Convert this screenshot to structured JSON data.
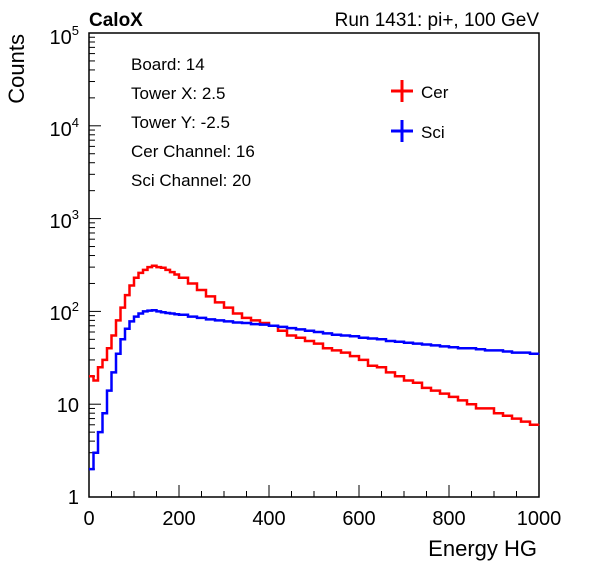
{
  "chart_data": {
    "type": "line",
    "title_left": "CaloX",
    "title_right": "Run 1431: pi+, 100 GeV",
    "xlabel": "Energy HG",
    "ylabel": "Counts",
    "xlim": [
      0,
      1000
    ],
    "ylim": [
      1,
      100000
    ],
    "yscale": "log",
    "grid": false,
    "x_ticks": [
      "0",
      "200",
      "400",
      "600",
      "800",
      "1000"
    ],
    "y_ticks": [
      {
        "base": "1",
        "exp": ""
      },
      {
        "base": "10",
        "exp": ""
      },
      {
        "base": "10",
        "exp": "2"
      },
      {
        "base": "10",
        "exp": "3"
      },
      {
        "base": "10",
        "exp": "4"
      },
      {
        "base": "10",
        "exp": "5"
      }
    ],
    "info_box": [
      "Board: 14",
      "Tower X: 2.5",
      "Tower Y: -2.5",
      "Cer Channel: 16",
      "Sci Channel: 20"
    ],
    "legend_position": "top-right",
    "series": [
      {
        "name": "Cer",
        "color": "#ff0000",
        "x": [
          0,
          10,
          20,
          30,
          40,
          50,
          60,
          70,
          80,
          90,
          100,
          110,
          120,
          130,
          140,
          150,
          160,
          170,
          180,
          190,
          200,
          220,
          240,
          260,
          280,
          300,
          320,
          340,
          360,
          380,
          400,
          420,
          440,
          460,
          480,
          500,
          520,
          540,
          560,
          580,
          600,
          620,
          640,
          660,
          680,
          700,
          720,
          740,
          760,
          780,
          800,
          820,
          840,
          860,
          880,
          900,
          920,
          940,
          960,
          980,
          1000
        ],
        "values": [
          20,
          18,
          25,
          30,
          40,
          55,
          80,
          110,
          150,
          190,
          230,
          260,
          280,
          300,
          310,
          300,
          295,
          280,
          265,
          250,
          230,
          200,
          170,
          145,
          125,
          110,
          95,
          85,
          80,
          75,
          70,
          62,
          55,
          52,
          48,
          45,
          40,
          38,
          36,
          33,
          30,
          26,
          25,
          22,
          20,
          18,
          17,
          15,
          14,
          13,
          12,
          11,
          10,
          9,
          9,
          8,
          7.5,
          7,
          6.5,
          6,
          6
        ]
      },
      {
        "name": "Sci",
        "color": "#0000ff",
        "x": [
          0,
          10,
          20,
          30,
          40,
          50,
          60,
          70,
          80,
          90,
          100,
          110,
          120,
          130,
          140,
          150,
          160,
          170,
          180,
          190,
          200,
          220,
          240,
          260,
          280,
          300,
          320,
          340,
          360,
          380,
          400,
          420,
          440,
          460,
          480,
          500,
          520,
          540,
          560,
          580,
          600,
          620,
          640,
          660,
          680,
          700,
          720,
          740,
          760,
          780,
          800,
          820,
          840,
          860,
          880,
          900,
          920,
          940,
          960,
          980,
          1000
        ],
        "values": [
          2,
          3,
          5,
          8,
          14,
          22,
          35,
          50,
          65,
          78,
          88,
          95,
          100,
          102,
          103,
          100,
          98,
          96,
          95,
          93,
          92,
          88,
          85,
          82,
          80,
          78,
          76,
          75,
          73,
          72,
          70,
          68,
          66,
          64,
          62,
          60,
          58,
          56,
          55,
          54,
          52,
          51,
          50,
          48,
          47,
          46,
          45,
          44,
          43,
          42,
          41,
          40,
          40,
          39,
          38,
          38,
          37,
          36,
          36,
          35,
          35
        ]
      }
    ]
  }
}
